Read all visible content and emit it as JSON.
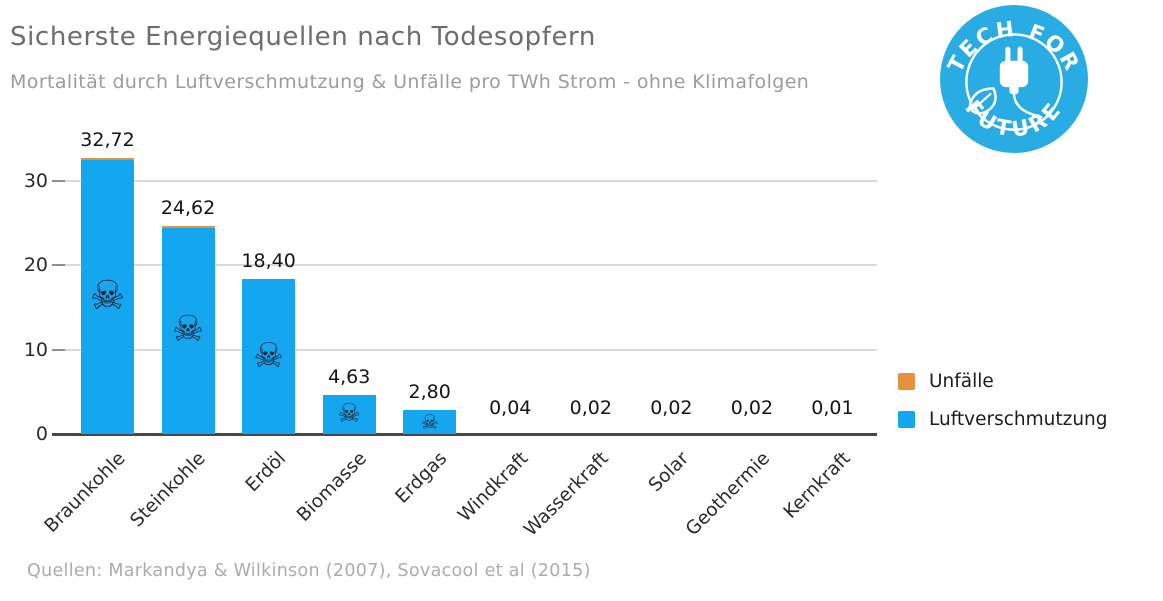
{
  "header": {
    "title": "Sicherste Energiequellen nach Todesopfern",
    "subtitle": "Mortalität durch Luftverschmutzung & Unfälle pro TWh Strom - ohne Klimafolgen"
  },
  "logo": {
    "line1": "TECH FOR",
    "line2": "FUTURE",
    "bg_color": "#29ACE3"
  },
  "chart_data": {
    "type": "bar",
    "stacked": true,
    "title": "Sicherste Energiequellen nach Todesopfern",
    "subtitle": "Mortalität durch Luftverschmutzung & Unfälle pro TWh Strom - ohne Klimafolgen",
    "categories": [
      "Braunkohle",
      "Steinkohle",
      "Erdöl",
      "Biomasse",
      "Erdgas",
      "Windkraft",
      "Wasserkraft",
      "Solar",
      "Geothermie",
      "Kernkraft"
    ],
    "totals": [
      32.72,
      24.62,
      18.4,
      4.63,
      2.8,
      0.04,
      0.02,
      0.02,
      0.02,
      0.01
    ],
    "value_labels": [
      "32,72",
      "24,62",
      "18,40",
      "4,63",
      "2,80",
      "0,04",
      "0,02",
      "0,02",
      "0,02",
      "0,01"
    ],
    "series": [
      {
        "name": "Unfälle",
        "color": "#E8913C",
        "values": [
          0.3,
          0.25,
          0.05,
          0.02,
          0.01,
          0,
          0,
          0,
          0,
          0
        ],
        "note": "thin orange cap, visibly present only on the tallest bars; split estimated from pixels"
      },
      {
        "name": "Luftverschmutzung",
        "color": "#14A7F0",
        "values": [
          32.42,
          24.37,
          18.35,
          4.61,
          2.79,
          0.04,
          0.02,
          0.02,
          0.02,
          0.01
        ]
      }
    ],
    "skull_icon": "☠",
    "skull_icon_on": [
      true,
      true,
      true,
      true,
      true,
      false,
      false,
      false,
      false,
      false
    ],
    "skull_color": "#1a2638",
    "yticks": [
      0,
      10,
      20,
      30
    ],
    "ylim": [
      0,
      34
    ],
    "grid": "horizontal",
    "legend_position": "right"
  },
  "legend": {
    "items": [
      {
        "label": "Unfälle",
        "color": "#E8913C"
      },
      {
        "label": "Luftverschmutzung",
        "color": "#14A7F0"
      }
    ]
  },
  "footer": {
    "source": "Quellen: Markandya & Wilkinson (2007), Sovacool et al (2015)"
  }
}
